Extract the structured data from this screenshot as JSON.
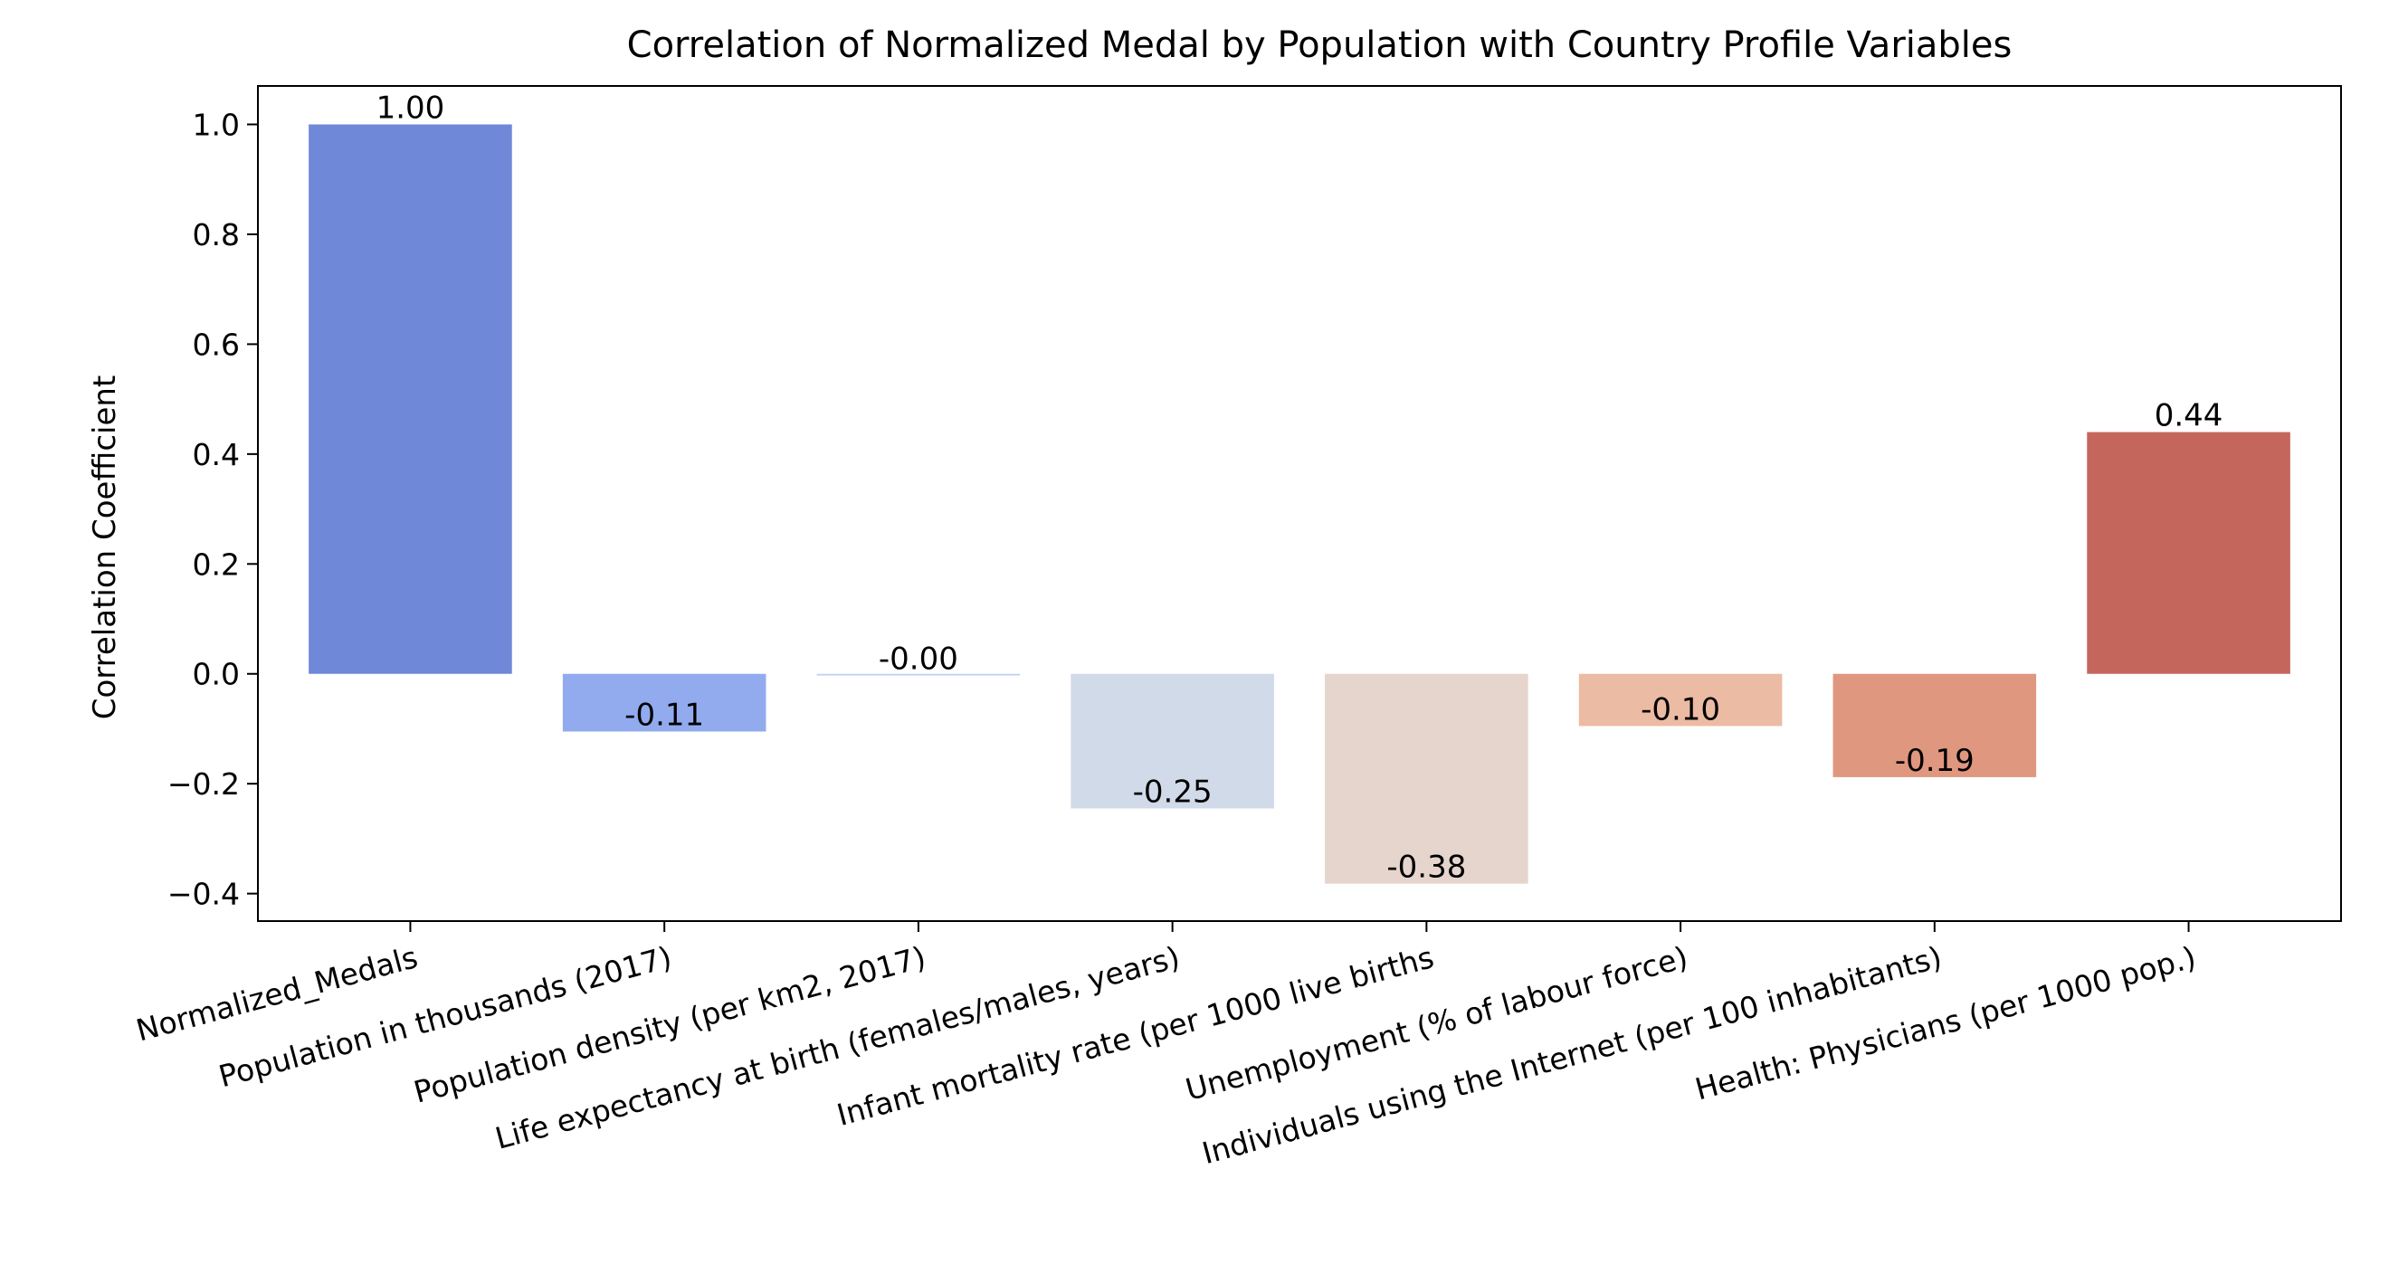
{
  "chart_data": {
    "type": "bar",
    "title": "Correlation of Normalized Medal by Population with Country Profile Variables",
    "xlabel": "",
    "ylabel": "Correlation Coefficient",
    "ylim": [
      -0.45,
      1.07
    ],
    "yticks": [
      -0.4,
      -0.2,
      0.0,
      0.2,
      0.4,
      0.6,
      0.8,
      1.0
    ],
    "ytick_labels": [
      "−0.4",
      "−0.2",
      "0.0",
      "0.2",
      "0.4",
      "0.6",
      "0.8",
      "1.0"
    ],
    "grid": false,
    "categories": [
      "Normalized_Medals",
      "Population in thousands (2017)",
      "Population density (per km2, 2017)",
      "Life expectancy at birth (females/males, years)",
      "Infant mortality rate (per 1000 live births",
      "Unemployment (% of labour force)",
      "Individuals using the Internet (per 100 inhabitants)",
      "Health: Physicians (per 1000 pop.)"
    ],
    "values": [
      1.0,
      -0.105,
      -0.003,
      -0.245,
      -0.382,
      -0.095,
      -0.188,
      0.44
    ],
    "data_labels": [
      "1.00",
      "-0.11",
      "-0.00",
      "-0.25",
      "-0.38",
      "-0.10",
      "-0.19",
      "0.44"
    ],
    "colors": [
      "#6f88d8",
      "#91abee",
      "#bfd1f4",
      "#d1dae9",
      "#e6d5cd",
      "#ecbba3",
      "#e0977f",
      "#c5665c"
    ]
  }
}
